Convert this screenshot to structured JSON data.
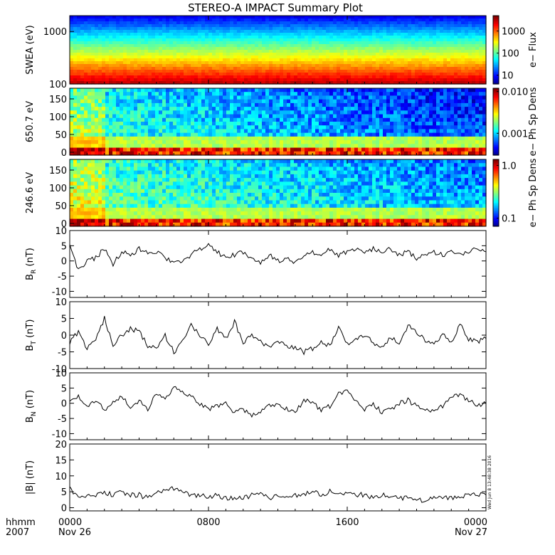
{
  "title": "STEREO-A IMPACT Summary Plot",
  "stamp": "Wed Jun  8 13:48:38 2016",
  "time_axis": {
    "unit_label": "hhmm",
    "year_label": "2007",
    "ticks": [
      {
        "label": "0000",
        "sub": "Nov 26",
        "hour": 0
      },
      {
        "label": "0800",
        "sub": "",
        "hour": 8
      },
      {
        "label": "1600",
        "sub": "",
        "hour": 16
      },
      {
        "label": "0000",
        "sub": "Nov 27",
        "hour": 24
      }
    ],
    "range_hours": [
      0,
      24
    ]
  },
  "colorbars": [
    {
      "label": "e− Flux",
      "ticks": [
        "1000",
        "100",
        "10"
      ],
      "scale": "log",
      "range": [
        4,
        5000
      ]
    },
    {
      "label": "e− Ph Sp Dens",
      "ticks": [
        "0.010",
        "0.001"
      ],
      "scale": "log",
      "range": [
        0.0003,
        0.012
      ]
    },
    {
      "label": "e− Ph Sp Dens",
      "ticks": [
        "1.0",
        "0.1"
      ],
      "scale": "log",
      "range": [
        0.07,
        1.3
      ]
    }
  ],
  "chart_data": [
    {
      "type": "heatmap",
      "ylabel": "SWEA (eV)",
      "yscale": "log",
      "ylim": [
        100,
        2000
      ],
      "ytick_labels": [
        "1000",
        "100"
      ],
      "description_values": "electron energy spectrum vs time; flux highest at low energy"
    },
    {
      "type": "heatmap",
      "ylabel": "650.7 eV",
      "ylim": [
        0,
        180
      ],
      "ytick_labels": [
        "150",
        "100",
        "50",
        "0"
      ]
    },
    {
      "type": "heatmap",
      "ylabel": "246.6 eV",
      "ylim": [
        0,
        180
      ],
      "ytick_labels": [
        "150",
        "100",
        "50",
        "0"
      ]
    },
    {
      "type": "line",
      "ylabel_main": "B",
      "ylabel_sub": "R",
      "ylabel_unit": " (nT)",
      "ylim": [
        -12,
        10
      ],
      "ytick_labels": [
        "10",
        "5",
        "0",
        "-5",
        "-10"
      ],
      "x_hours": [
        0,
        0.5,
        1,
        1.5,
        2,
        2.5,
        3,
        3.5,
        4,
        4.5,
        5,
        5.5,
        6,
        6.5,
        7,
        7.5,
        8,
        8.5,
        9,
        9.5,
        10,
        10.5,
        11,
        11.5,
        12,
        12.5,
        13,
        13.5,
        14,
        14.5,
        15,
        15.5,
        16,
        16.5,
        17,
        17.5,
        18,
        18.5,
        19,
        19.5,
        20,
        20.5,
        21,
        21.5,
        22,
        22.5,
        23,
        23.5,
        24
      ],
      "values": [
        5,
        -3,
        0,
        1,
        4,
        -1,
        3,
        2,
        4,
        3,
        3,
        1,
        -1,
        0,
        2,
        4,
        5,
        3,
        1,
        2,
        3,
        1,
        -1,
        2,
        0,
        1,
        -1,
        2,
        3,
        1,
        4,
        2,
        3,
        4,
        3,
        4,
        3,
        4,
        2,
        3,
        1,
        2,
        3,
        2,
        3,
        2,
        3,
        4,
        3
      ]
    },
    {
      "type": "line",
      "ylabel_main": "B",
      "ylabel_sub": "T",
      "ylabel_unit": " (nT)",
      "ylim": [
        -10,
        10
      ],
      "ytick_labels": [
        "10",
        "5",
        "0",
        "-5",
        "-10"
      ],
      "x_hours": [
        0,
        0.5,
        1,
        1.5,
        2,
        2.5,
        3,
        3.5,
        4,
        4.5,
        5,
        5.5,
        6,
        6.5,
        7,
        7.5,
        8,
        8.5,
        9,
        9.5,
        10,
        10.5,
        11,
        11.5,
        12,
        12.5,
        13,
        13.5,
        14,
        14.5,
        15,
        15.5,
        16,
        16.5,
        17,
        17.5,
        18,
        18.5,
        19,
        19.5,
        20,
        20.5,
        21,
        21.5,
        22,
        22.5,
        23,
        23.5,
        24
      ],
      "values": [
        -2,
        1,
        -4,
        -1,
        5,
        -3,
        0,
        2,
        1,
        -3,
        -4,
        0,
        -5,
        -2,
        3,
        0,
        -3,
        2,
        -1,
        4,
        -2,
        0,
        -2,
        -4,
        -2,
        -3,
        -4,
        -5,
        -4,
        -2,
        -3,
        2,
        -3,
        -1,
        0,
        -2,
        -4,
        -1,
        -2,
        3,
        1,
        -2,
        -3,
        0,
        -2,
        3,
        -1,
        -2,
        -1
      ]
    },
    {
      "type": "line",
      "ylabel_main": "B",
      "ylabel_sub": "N",
      "ylabel_unit": " (nT)",
      "ylim": [
        -12,
        10
      ],
      "ytick_labels": [
        "10",
        "5",
        "0",
        "-5",
        "-10"
      ],
      "x_hours": [
        0,
        0.5,
        1,
        1.5,
        2,
        2.5,
        3,
        3.5,
        4,
        4.5,
        5,
        5.5,
        6,
        6.5,
        7,
        7.5,
        8,
        8.5,
        9,
        9.5,
        10,
        10.5,
        11,
        11.5,
        12,
        12.5,
        13,
        13.5,
        14,
        14.5,
        15,
        15.5,
        16,
        16.5,
        17,
        17.5,
        18,
        18.5,
        19,
        19.5,
        20,
        20.5,
        21,
        21.5,
        22,
        22.5,
        23,
        23.5,
        24
      ],
      "values": [
        0,
        2,
        -1,
        1,
        -2,
        0,
        2,
        -1,
        1,
        -2,
        3,
        1,
        5,
        4,
        2,
        0,
        -2,
        -1,
        0,
        -3,
        -2,
        -4,
        -3,
        -1,
        0,
        -2,
        -3,
        1,
        0,
        -2,
        -1,
        3,
        4,
        1,
        -2,
        0,
        -3,
        -2,
        0,
        1,
        -1,
        -2,
        -3,
        -1,
        2,
        3,
        1,
        -1,
        0
      ]
    },
    {
      "type": "line",
      "ylabel_main": "|B|",
      "ylabel_sub": "",
      "ylabel_unit": " (nT)",
      "ylim": [
        -1,
        20
      ],
      "ytick_labels": [
        "20",
        "15",
        "10",
        "5",
        "0"
      ],
      "x_hours": [
        0,
        0.5,
        1,
        1.5,
        2,
        2.5,
        3,
        3.5,
        4,
        4.5,
        5,
        5.5,
        6,
        6.5,
        7,
        7.5,
        8,
        8.5,
        9,
        9.5,
        10,
        10.5,
        11,
        11.5,
        12,
        12.5,
        13,
        13.5,
        14,
        14.5,
        15,
        15.5,
        16,
        16.5,
        17,
        17.5,
        18,
        18.5,
        19,
        19.5,
        20,
        20.5,
        21,
        21.5,
        22,
        22.5,
        23,
        23.5,
        24
      ],
      "values": [
        6,
        3,
        4,
        4,
        5,
        4,
        5,
        4,
        4,
        3,
        5,
        5,
        6,
        5,
        4,
        4,
        3,
        4,
        3,
        3,
        3,
        4,
        4,
        3,
        4,
        4,
        4,
        4,
        5,
        4,
        5,
        5,
        4,
        4,
        4,
        3,
        4,
        3,
        3,
        3,
        3,
        2,
        3,
        3,
        3,
        3,
        4,
        4,
        4
      ]
    }
  ]
}
